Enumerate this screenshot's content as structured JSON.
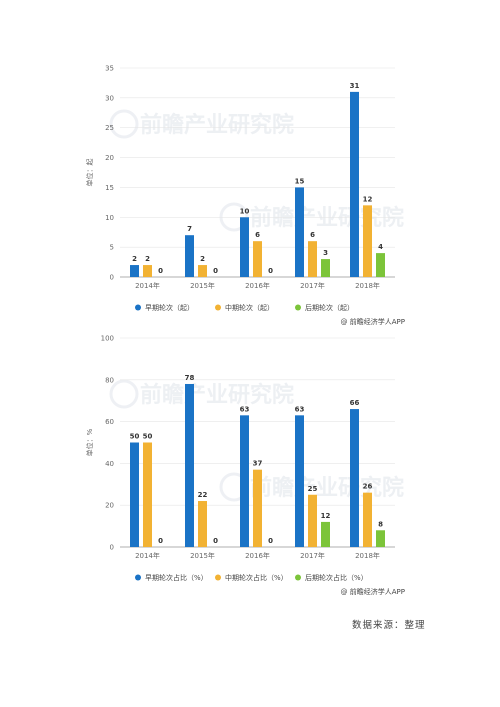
{
  "charts": [
    {
      "id": "chart1",
      "ylabel": "单位：起",
      "source": "@ 前瞻经济学人APP",
      "watermark": "前瞻产业研究院"
    },
    {
      "id": "chart2",
      "ylabel": "单位：%",
      "source": "@ 前瞻经济学人APP",
      "watermark": "前瞻产业研究院"
    }
  ],
  "footnote": "数据来源：整理",
  "colors": {
    "early": "#1a73c6",
    "mid": "#f2b233",
    "late": "#7cc43a"
  },
  "chart_data": [
    {
      "type": "bar",
      "categories": [
        "2014年",
        "2015年",
        "2016年",
        "2017年",
        "2018年"
      ],
      "series": [
        {
          "name": "早期轮次（起）",
          "values": [
            2,
            7,
            10,
            15,
            31
          ]
        },
        {
          "name": "中期轮次（起）",
          "values": [
            2,
            2,
            6,
            6,
            12
          ]
        },
        {
          "name": "后期轮次（起）",
          "values": [
            0,
            0,
            0,
            3,
            4
          ]
        }
      ],
      "ylabel": "单位：起",
      "ylim": [
        0,
        35
      ],
      "yticks": [
        0,
        5,
        10,
        15,
        20,
        25,
        30,
        35
      ],
      "grid": true,
      "legend": "bottom"
    },
    {
      "type": "bar",
      "categories": [
        "2014年",
        "2015年",
        "2016年",
        "2017年",
        "2018年"
      ],
      "series": [
        {
          "name": "早期轮次占比（%）",
          "values": [
            50,
            78,
            63,
            63,
            66
          ]
        },
        {
          "name": "中期轮次占比（%）",
          "values": [
            50,
            22,
            37,
            25,
            26
          ]
        },
        {
          "name": "后期轮次占比（%）",
          "values": [
            0,
            0,
            0,
            12,
            8
          ]
        }
      ],
      "ylabel": "单位：%",
      "ylim": [
        0,
        100
      ],
      "yticks": [
        0,
        20,
        40,
        60,
        80,
        100
      ],
      "grid": true,
      "legend": "bottom"
    }
  ]
}
